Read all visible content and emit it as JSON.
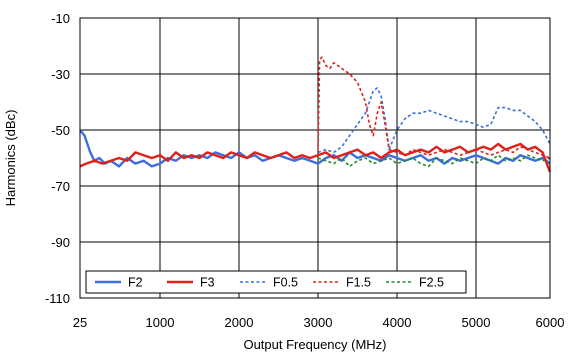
{
  "chart_data": {
    "type": "line",
    "title": "",
    "xlabel": "Output Frequency (MHz)",
    "ylabel": "Harmonics (dBc)",
    "xlim": [
      25,
      6000
    ],
    "ylim": [
      -110,
      -10
    ],
    "xticks": [
      25,
      1000,
      2000,
      3000,
      4000,
      5000,
      6000
    ],
    "xtick_labels": [
      "25",
      "1000",
      "2000",
      "3000",
      "4000",
      "5000",
      "6000"
    ],
    "yticks": [
      -10,
      -30,
      -50,
      -70,
      -90,
      -110
    ],
    "ytick_labels": [
      "-10",
      "-30",
      "-50",
      "-70",
      "-90",
      "-110"
    ],
    "grid": true,
    "legend_position": "bottom-left",
    "series": [
      {
        "name": "F2",
        "color": "#3c6edc",
        "dash": "solid",
        "x": [
          25,
          80,
          150,
          200,
          260,
          330,
          400,
          500,
          600,
          700,
          800,
          900,
          1000,
          1100,
          1200,
          1300,
          1400,
          1500,
          1600,
          1700,
          1800,
          1900,
          2000,
          2100,
          2200,
          2300,
          2400,
          2500,
          2600,
          2700,
          2800,
          2900,
          3000,
          3100,
          3200,
          3300,
          3400,
          3500,
          3600,
          3700,
          3800,
          3900,
          4000,
          4100,
          4200,
          4300,
          4400,
          4500,
          4600,
          4700,
          4800,
          4900,
          5000,
          5100,
          5200,
          5300,
          5400,
          5500,
          5600,
          5700,
          5800,
          5900,
          6000
        ],
        "y": [
          -50,
          -52,
          -58,
          -61,
          -60,
          -62,
          -61,
          -63,
          -60,
          -62,
          -61,
          -63,
          -62,
          -60,
          -61,
          -59,
          -60,
          -59,
          -60,
          -58,
          -59,
          -60,
          -58,
          -60,
          -59,
          -61,
          -60,
          -59,
          -60,
          -61,
          -60,
          -61,
          -62,
          -60,
          -59,
          -61,
          -58,
          -60,
          -59,
          -60,
          -61,
          -59,
          -60,
          -61,
          -60,
          -59,
          -61,
          -60,
          -62,
          -60,
          -61,
          -60,
          -59,
          -60,
          -61,
          -62,
          -60,
          -61,
          -59,
          -60,
          -61,
          -60,
          -62
        ]
      },
      {
        "name": "F3",
        "color": "#e0201b",
        "dash": "solid",
        "x": [
          25,
          100,
          200,
          300,
          400,
          500,
          600,
          700,
          800,
          900,
          1000,
          1100,
          1200,
          1300,
          1400,
          1500,
          1600,
          1700,
          1800,
          1900,
          2000,
          2100,
          2200,
          2300,
          2400,
          2500,
          2600,
          2700,
          2800,
          2900,
          3000,
          3100,
          3200,
          3300,
          3400,
          3500,
          3600,
          3700,
          3800,
          3900,
          4000,
          4100,
          4200,
          4300,
          4400,
          4500,
          4600,
          4700,
          4800,
          4900,
          5000,
          5100,
          5200,
          5300,
          5400,
          5500,
          5600,
          5700,
          5800,
          5900,
          6000
        ],
        "y": [
          -63,
          -62,
          -61,
          -62,
          -61,
          -60,
          -61,
          -58,
          -59,
          -60,
          -59,
          -61,
          -58,
          -60,
          -59,
          -60,
          -58,
          -59,
          -60,
          -58,
          -59,
          -60,
          -58,
          -59,
          -60,
          -59,
          -58,
          -60,
          -59,
          -60,
          -59,
          -58,
          -60,
          -59,
          -58,
          -57,
          -59,
          -58,
          -60,
          -58,
          -57,
          -59,
          -58,
          -57,
          -58,
          -56,
          -58,
          -57,
          -56,
          -58,
          -57,
          -56,
          -57,
          -55,
          -57,
          -56,
          -55,
          -57,
          -56,
          -58,
          -65
        ]
      },
      {
        "name": "F0.5",
        "color": "#3c6edc",
        "dash": "dashed",
        "x": [
          3000,
          3100,
          3200,
          3300,
          3400,
          3500,
          3600,
          3650,
          3700,
          3750,
          3800,
          3850,
          3900,
          4000,
          4100,
          4200,
          4300,
          4400,
          4500,
          4600,
          4700,
          4800,
          4900,
          5000,
          5100,
          5200,
          5300,
          5400,
          5500,
          5600,
          5700,
          5800,
          5900,
          6000
        ],
        "y": [
          -58,
          -57,
          -58,
          -56,
          -52,
          -48,
          -44,
          -40,
          -36,
          -35,
          -38,
          -46,
          -57,
          -50,
          -46,
          -44,
          -44,
          -43,
          -44,
          -45,
          -46,
          -47,
          -47,
          -48,
          -49,
          -48,
          -42,
          -42,
          -43,
          -43,
          -45,
          -47,
          -50,
          -55
        ]
      },
      {
        "name": "F1.5",
        "color": "#e0201b",
        "dash": "dashed",
        "x": [
          3000,
          3020,
          3050,
          3100,
          3150,
          3200,
          3300,
          3400,
          3500,
          3600,
          3650,
          3700,
          3750,
          3800,
          3850,
          3900,
          4000,
          4100,
          4200,
          4300,
          4400,
          4500,
          4600,
          4700,
          4800,
          4900,
          5000,
          5100,
          5200,
          5300,
          5400,
          5500,
          5600,
          5700,
          5800,
          5900,
          6000
        ],
        "y": [
          -58,
          -25,
          -24,
          -27,
          -28,
          -26,
          -28,
          -30,
          -33,
          -40,
          -48,
          -52,
          -44,
          -40,
          -48,
          -57,
          -58,
          -59,
          -57,
          -58,
          -59,
          -58,
          -57,
          -58,
          -59,
          -58,
          -57,
          -58,
          -59,
          -58,
          -57,
          -58,
          -56,
          -57,
          -58,
          -59,
          -60
        ]
      },
      {
        "name": "F2.5",
        "color": "#1f8a2a",
        "dash": "dashed",
        "x": [
          3000,
          3100,
          3200,
          3300,
          3400,
          3500,
          3600,
          3700,
          3800,
          3900,
          4000,
          4100,
          4200,
          4300,
          4400,
          4500,
          4600,
          4700,
          4800,
          4900,
          5000,
          5100,
          5200,
          5300,
          5400,
          5500,
          5600,
          5700,
          5800,
          5900,
          6000
        ],
        "y": [
          -60,
          -61,
          -62,
          -60,
          -63,
          -61,
          -60,
          -62,
          -61,
          -60,
          -62,
          -61,
          -60,
          -62,
          -63,
          -60,
          -61,
          -62,
          -60,
          -61,
          -62,
          -60,
          -61,
          -59,
          -61,
          -60,
          -61,
          -59,
          -60,
          -61,
          -60
        ]
      }
    ]
  }
}
